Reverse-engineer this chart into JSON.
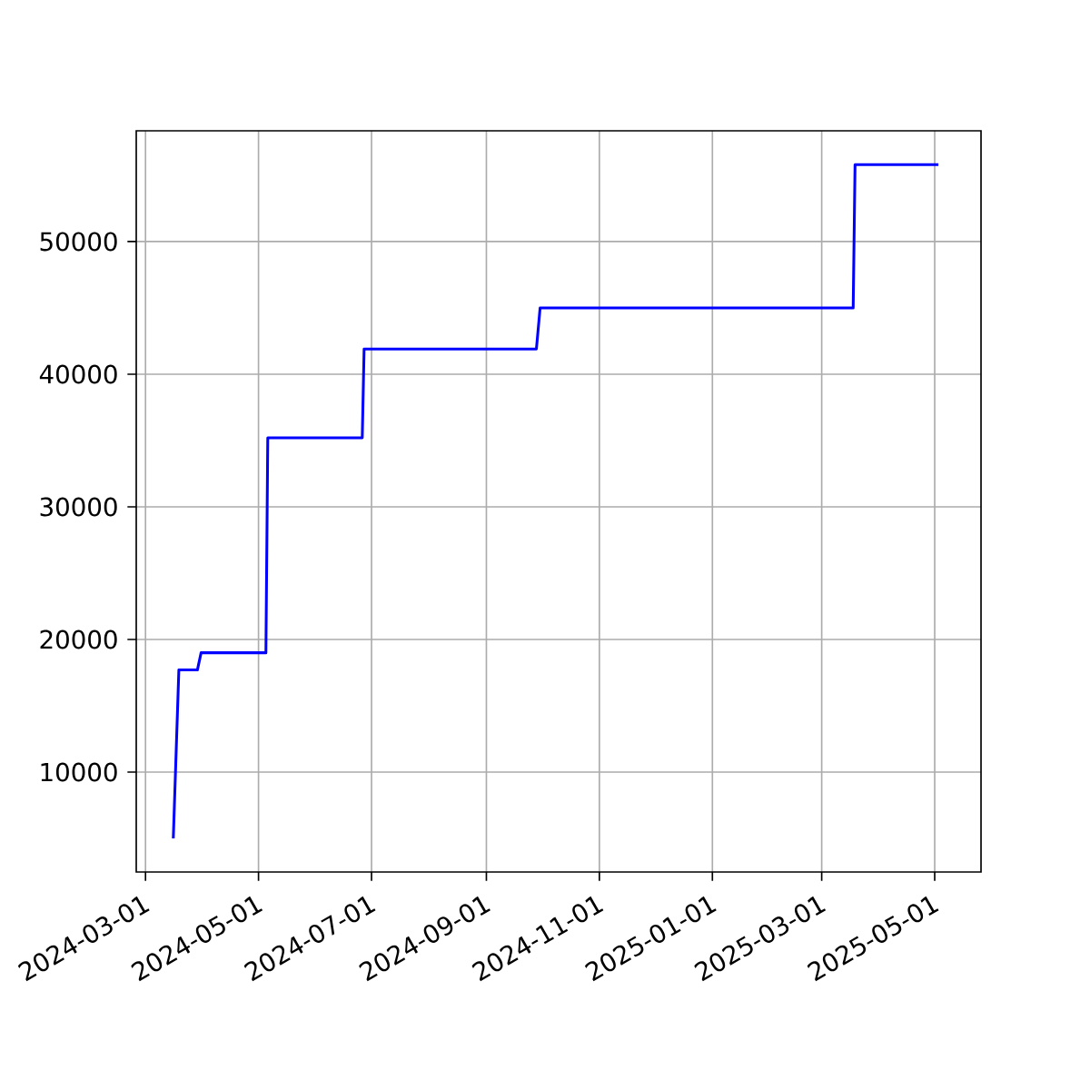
{
  "chart_data": {
    "type": "line",
    "x": [
      "2024-03-16",
      "2024-03-19",
      "2024-03-29",
      "2024-03-31",
      "2024-05-05",
      "2024-05-06",
      "2024-06-26",
      "2024-06-27",
      "2024-09-28",
      "2024-09-30",
      "2025-03-18",
      "2025-03-19",
      "2025-05-03"
    ],
    "series": [
      {
        "color": "#0000ff",
        "values": [
          5000,
          17700,
          17700,
          19000,
          19000,
          35200,
          35200,
          41900,
          41900,
          45000,
          45000,
          55800,
          55800
        ]
      }
    ],
    "xlim": [
      "2024-02-25",
      "2025-05-26"
    ],
    "xticks": [
      "2024-03-01",
      "2024-05-01",
      "2024-07-01",
      "2024-09-01",
      "2024-11-01",
      "2025-01-01",
      "2025-03-01",
      "2025-05-01"
    ],
    "ylim": [
      2470,
      58350
    ],
    "yticks": [
      10000,
      20000,
      30000,
      40000,
      50000
    ],
    "grid": true,
    "marker": "none",
    "line_style": "solid"
  }
}
